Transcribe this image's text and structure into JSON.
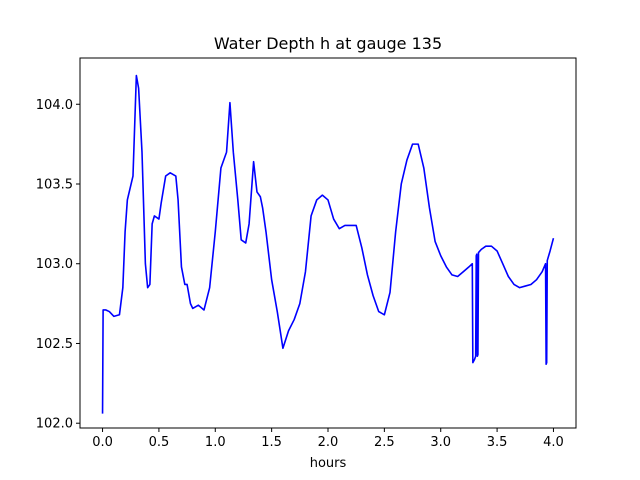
{
  "chart_data": {
    "type": "line",
    "title": "Water Depth h at gauge 135",
    "xlabel": "hours",
    "ylabel": "",
    "xlim": [
      -0.2,
      4.2
    ],
    "ylim": [
      101.97,
      104.29
    ],
    "x_ticks": [
      0.0,
      0.5,
      1.0,
      1.5,
      2.0,
      2.5,
      3.0,
      3.5,
      4.0
    ],
    "x_tick_labels": [
      "0.0",
      "0.5",
      "1.0",
      "1.5",
      "2.0",
      "2.5",
      "3.0",
      "3.5",
      "4.0"
    ],
    "y_ticks": [
      102.0,
      102.5,
      103.0,
      103.5,
      104.0
    ],
    "y_tick_labels": [
      "102.0",
      "102.5",
      "103.0",
      "103.5",
      "104.0"
    ],
    "grid": false,
    "legend": "none",
    "series": [
      {
        "color": "#0000ff",
        "points": [
          [
            0.0,
            102.06
          ],
          [
            0.005,
            102.71
          ],
          [
            0.03,
            102.71
          ],
          [
            0.06,
            102.7
          ],
          [
            0.1,
            102.67
          ],
          [
            0.15,
            102.68
          ],
          [
            0.18,
            102.85
          ],
          [
            0.2,
            103.2
          ],
          [
            0.22,
            103.4
          ],
          [
            0.27,
            103.55
          ],
          [
            0.3,
            104.18
          ],
          [
            0.32,
            104.1
          ],
          [
            0.35,
            103.7
          ],
          [
            0.38,
            103.0
          ],
          [
            0.4,
            102.85
          ],
          [
            0.42,
            102.87
          ],
          [
            0.44,
            103.25
          ],
          [
            0.46,
            103.3
          ],
          [
            0.5,
            103.28
          ],
          [
            0.52,
            103.38
          ],
          [
            0.56,
            103.55
          ],
          [
            0.6,
            103.57
          ],
          [
            0.65,
            103.55
          ],
          [
            0.67,
            103.4
          ],
          [
            0.7,
            102.98
          ],
          [
            0.73,
            102.87
          ],
          [
            0.75,
            102.87
          ],
          [
            0.78,
            102.75
          ],
          [
            0.8,
            102.72
          ],
          [
            0.85,
            102.74
          ],
          [
            0.9,
            102.71
          ],
          [
            0.95,
            102.85
          ],
          [
            1.0,
            103.2
          ],
          [
            1.05,
            103.6
          ],
          [
            1.1,
            103.7
          ],
          [
            1.13,
            104.01
          ],
          [
            1.16,
            103.7
          ],
          [
            1.2,
            103.4
          ],
          [
            1.23,
            103.15
          ],
          [
            1.27,
            103.13
          ],
          [
            1.3,
            103.25
          ],
          [
            1.34,
            103.64
          ],
          [
            1.37,
            103.45
          ],
          [
            1.4,
            103.42
          ],
          [
            1.42,
            103.35
          ],
          [
            1.45,
            103.2
          ],
          [
            1.5,
            102.9
          ],
          [
            1.55,
            102.7
          ],
          [
            1.6,
            102.47
          ],
          [
            1.65,
            102.58
          ],
          [
            1.7,
            102.65
          ],
          [
            1.75,
            102.75
          ],
          [
            1.8,
            102.95
          ],
          [
            1.85,
            103.3
          ],
          [
            1.9,
            103.4
          ],
          [
            1.95,
            103.43
          ],
          [
            2.0,
            103.4
          ],
          [
            2.05,
            103.28
          ],
          [
            2.1,
            103.22
          ],
          [
            2.15,
            103.24
          ],
          [
            2.2,
            103.24
          ],
          [
            2.25,
            103.24
          ],
          [
            2.3,
            103.1
          ],
          [
            2.35,
            102.93
          ],
          [
            2.4,
            102.8
          ],
          [
            2.45,
            102.7
          ],
          [
            2.5,
            102.68
          ],
          [
            2.55,
            102.82
          ],
          [
            2.6,
            103.2
          ],
          [
            2.65,
            103.5
          ],
          [
            2.7,
            103.65
          ],
          [
            2.75,
            103.75
          ],
          [
            2.8,
            103.75
          ],
          [
            2.85,
            103.6
          ],
          [
            2.9,
            103.35
          ],
          [
            2.95,
            103.14
          ],
          [
            3.0,
            103.05
          ],
          [
            3.05,
            102.98
          ],
          [
            3.1,
            102.93
          ],
          [
            3.15,
            102.92
          ],
          [
            3.2,
            102.95
          ],
          [
            3.25,
            102.98
          ],
          [
            3.28,
            103.0
          ],
          [
            3.285,
            102.38
          ],
          [
            3.3,
            102.4
          ],
          [
            3.31,
            102.42
          ],
          [
            3.315,
            103.05
          ],
          [
            3.32,
            103.06
          ],
          [
            3.325,
            102.42
          ],
          [
            3.33,
            102.43
          ],
          [
            3.335,
            103.07
          ],
          [
            3.36,
            103.09
          ],
          [
            3.4,
            103.11
          ],
          [
            3.45,
            103.11
          ],
          [
            3.5,
            103.08
          ],
          [
            3.55,
            103.0
          ],
          [
            3.6,
            102.92
          ],
          [
            3.65,
            102.87
          ],
          [
            3.7,
            102.85
          ],
          [
            3.75,
            102.86
          ],
          [
            3.8,
            102.87
          ],
          [
            3.85,
            102.9
          ],
          [
            3.9,
            102.95
          ],
          [
            3.93,
            103.0
          ],
          [
            3.935,
            102.37
          ],
          [
            3.94,
            102.38
          ],
          [
            3.945,
            103.02
          ],
          [
            3.97,
            103.08
          ],
          [
            4.0,
            103.16
          ]
        ]
      }
    ]
  }
}
